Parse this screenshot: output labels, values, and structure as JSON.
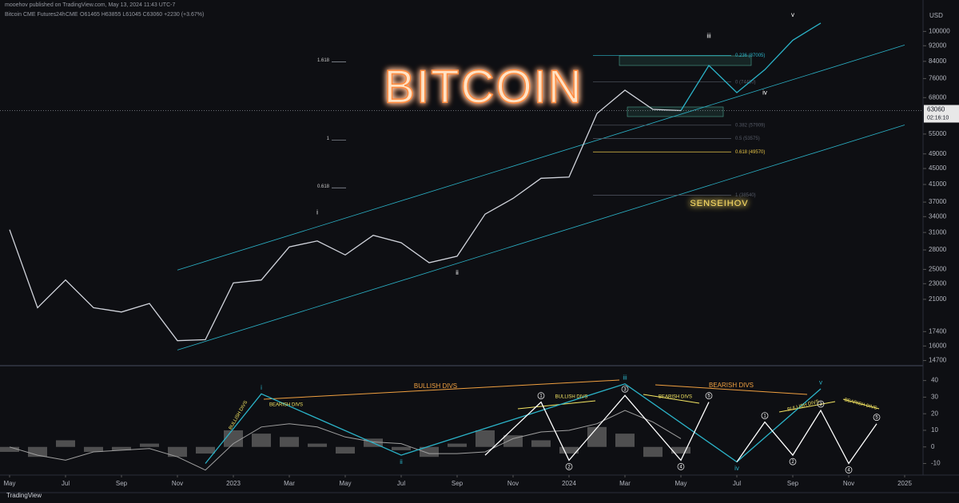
{
  "header": {
    "publisher": "mooehov published on TradingView.com, May 13, 2024 11:43 UTC-7",
    "interval": "24h",
    "exchange": "CME",
    "ohlc": "O61465 H63855 L61045 C63060 +2230 (+3.67%)",
    "countdown": "02:16:10",
    "brand": "TradingView"
  },
  "chart_data": [
    {
      "type": "line",
      "title": "BITCOIN",
      "signature": "SENSEIHOV",
      "log_scale": true,
      "y_unit": "USD",
      "x": [
        "2022-05",
        "2022-06",
        "2022-07",
        "2022-08",
        "2022-09",
        "2022-10",
        "2022-11",
        "2022-12",
        "2023-01",
        "2023-02",
        "2023-03",
        "2023-04",
        "2023-05",
        "2023-06",
        "2023-07",
        "2023-08",
        "2023-09",
        "2023-10",
        "2023-11",
        "2023-12",
        "2024-01",
        "2024-02",
        "2024-03",
        "2024-04",
        "2024-05"
      ],
      "series": [
        {
          "name": "Bitcoin CME Futures",
          "color": "#d1d4dc",
          "values": [
            31500,
            20000,
            23500,
            20000,
            19500,
            20500,
            16500,
            16600,
            23100,
            23500,
            28500,
            29500,
            27200,
            30500,
            29200,
            26000,
            27000,
            34500,
            37800,
            42500,
            42800,
            62000,
            71000,
            63500,
            63060
          ]
        },
        {
          "color": "#2bb3c8",
          "x": [
            "2024-05",
            "2024-06",
            "2024-07",
            "2024-08",
            "2024-09",
            "2024-10"
          ],
          "values": [
            63060,
            82000,
            70000,
            80000,
            95000,
            105000
          ]
        }
      ],
      "last_price": 63060,
      "trend_lines": [
        {
          "color": "#2bb3c8",
          "x": [
            "2022-11",
            "2025-01"
          ],
          "values": [
            15630,
            58000
          ]
        },
        {
          "color": "#2bb3c8",
          "x": [
            "2022-11",
            "2025-01"
          ],
          "values": [
            24900,
            92400
          ]
        }
      ],
      "fib_levels": [
        {
          "value": 87005,
          "label": "0.236 (87005)"
        },
        {
          "value": 74480,
          "label": "0 (74480)"
        },
        {
          "value": 57909,
          "label": "0.382 (57909)"
        },
        {
          "value": 53575,
          "label": "0.5 (53575)"
        },
        {
          "value": 49570,
          "label": "0.618 (49570)"
        },
        {
          "value": 38540,
          "label": "1 (38540)"
        }
      ],
      "extension_levels": [
        {
          "value": 83800,
          "label": "1.618"
        },
        {
          "value": 53100,
          "label": "1"
        },
        {
          "value": 40200,
          "label": "0.618"
        }
      ],
      "wave_labels": [
        {
          "label": "i",
          "x": "2023-04",
          "y": 34800
        },
        {
          "label": "ii",
          "x": "2023-09",
          "y": 24500
        },
        {
          "label": "iii",
          "x": "2024-06",
          "y": 97200
        },
        {
          "label": "iv",
          "x": "2024-08",
          "y": 69900
        },
        {
          "label": "v",
          "x": "2024-09",
          "y": 110000
        }
      ],
      "xlim": [
        "2022-05",
        "2025-01"
      ],
      "xticks": [
        {
          "value": "2022-05",
          "label": "May"
        },
        {
          "value": "2022-07",
          "label": "Jul"
        },
        {
          "value": "2022-09",
          "label": "Sep"
        },
        {
          "value": "2022-11",
          "label": "Nov"
        },
        {
          "value": "2023-01",
          "label": "2023"
        },
        {
          "value": "2023-03",
          "label": "Mar"
        },
        {
          "value": "2023-05",
          "label": "May"
        },
        {
          "value": "2023-07",
          "label": "Jul"
        },
        {
          "value": "2023-09",
          "label": "Sep"
        },
        {
          "value": "2023-11",
          "label": "Nov"
        },
        {
          "value": "2024-01",
          "label": "2024"
        },
        {
          "value": "2024-03",
          "label": "Mar"
        },
        {
          "value": "2024-05",
          "label": "May"
        },
        {
          "value": "2024-07",
          "label": "Jul"
        },
        {
          "value": "2024-09",
          "label": "Sep"
        },
        {
          "value": "2024-11",
          "label": "Nov"
        },
        {
          "value": "2025-01",
          "label": "2025"
        }
      ],
      "ylim": [
        14400,
        112000
      ],
      "yticks": [
        100000,
        92000,
        84000,
        76000,
        68000,
        55000,
        49000,
        45000,
        41000,
        37000,
        34000,
        31000,
        28000,
        25000,
        23000,
        21000,
        17400,
        16000,
        14700
      ]
    },
    {
      "type": "bar",
      "color": "#6b6b6b",
      "x": [
        "2022-05",
        "2022-06",
        "2022-07",
        "2022-08",
        "2022-09",
        "2022-10",
        "2022-11",
        "2022-12",
        "2023-01",
        "2023-02",
        "2023-03",
        "2023-04",
        "2023-05",
        "2023-06",
        "2023-07",
        "2023-08",
        "2023-09",
        "2023-10",
        "2023-11",
        "2023-12",
        "2024-01",
        "2024-02",
        "2024-03",
        "2024-04",
        "2024-05"
      ],
      "values": [
        -3,
        -6,
        4,
        -3,
        -2,
        2,
        -6,
        -4,
        10,
        8,
        6,
        2,
        -4,
        5,
        -2,
        -6,
        2,
        10,
        7,
        4,
        -4,
        12,
        8,
        -6,
        -4
      ],
      "series": [
        {
          "color": "#a0a0a0",
          "values": [
            0,
            -5,
            -8,
            -3,
            -2,
            -1,
            -6,
            -14,
            2,
            12,
            14,
            12,
            6,
            3,
            2,
            -4,
            -4,
            -3,
            5,
            9,
            10,
            14,
            22,
            15,
            5
          ]
        }
      ],
      "waves": [
        {
          "color": "#2bb3c8",
          "x": [
            "2022-12",
            "2023-02",
            "2023-07",
            "2024-03",
            "2024-07",
            "2024-10"
          ],
          "values": [
            -10,
            32,
            -5,
            38,
            -9,
            35
          ],
          "point_labels": [
            null,
            "i",
            "ii",
            "iii",
            "iv",
            "v"
          ]
        },
        {
          "color": "#ffffff",
          "x": [
            "2023-10",
            "2023-12",
            "2024-01",
            "2024-03",
            "2024-05",
            "2024-06"
          ],
          "values": [
            -5,
            27,
            -8,
            31,
            -8,
            27
          ],
          "point_labels": [
            null,
            "1",
            "2",
            "3",
            "4",
            "5"
          ]
        },
        {
          "color": "#ffffff",
          "x": [
            "2024-07",
            "2024-08",
            "2024-09",
            "2024-10",
            "2024-11",
            "2024-12"
          ],
          "values": [
            -9,
            15,
            -5,
            22,
            -10,
            14
          ],
          "point_labels": [
            null,
            "1",
            "2",
            "3",
            "4",
            "5"
          ]
        }
      ],
      "annotations": [
        "BULLISH DIVS",
        "BEARISH DIVS",
        "BULLISH DIVS",
        "BEARISH DIVS",
        "BULLISH DIVS",
        "BEARISH DIVS",
        "BULLISH DIVS",
        "BEARISH DIVS"
      ],
      "ylim": [
        -16,
        48
      ],
      "yticks": [
        40,
        30,
        20,
        10,
        0,
        -10
      ]
    }
  ]
}
